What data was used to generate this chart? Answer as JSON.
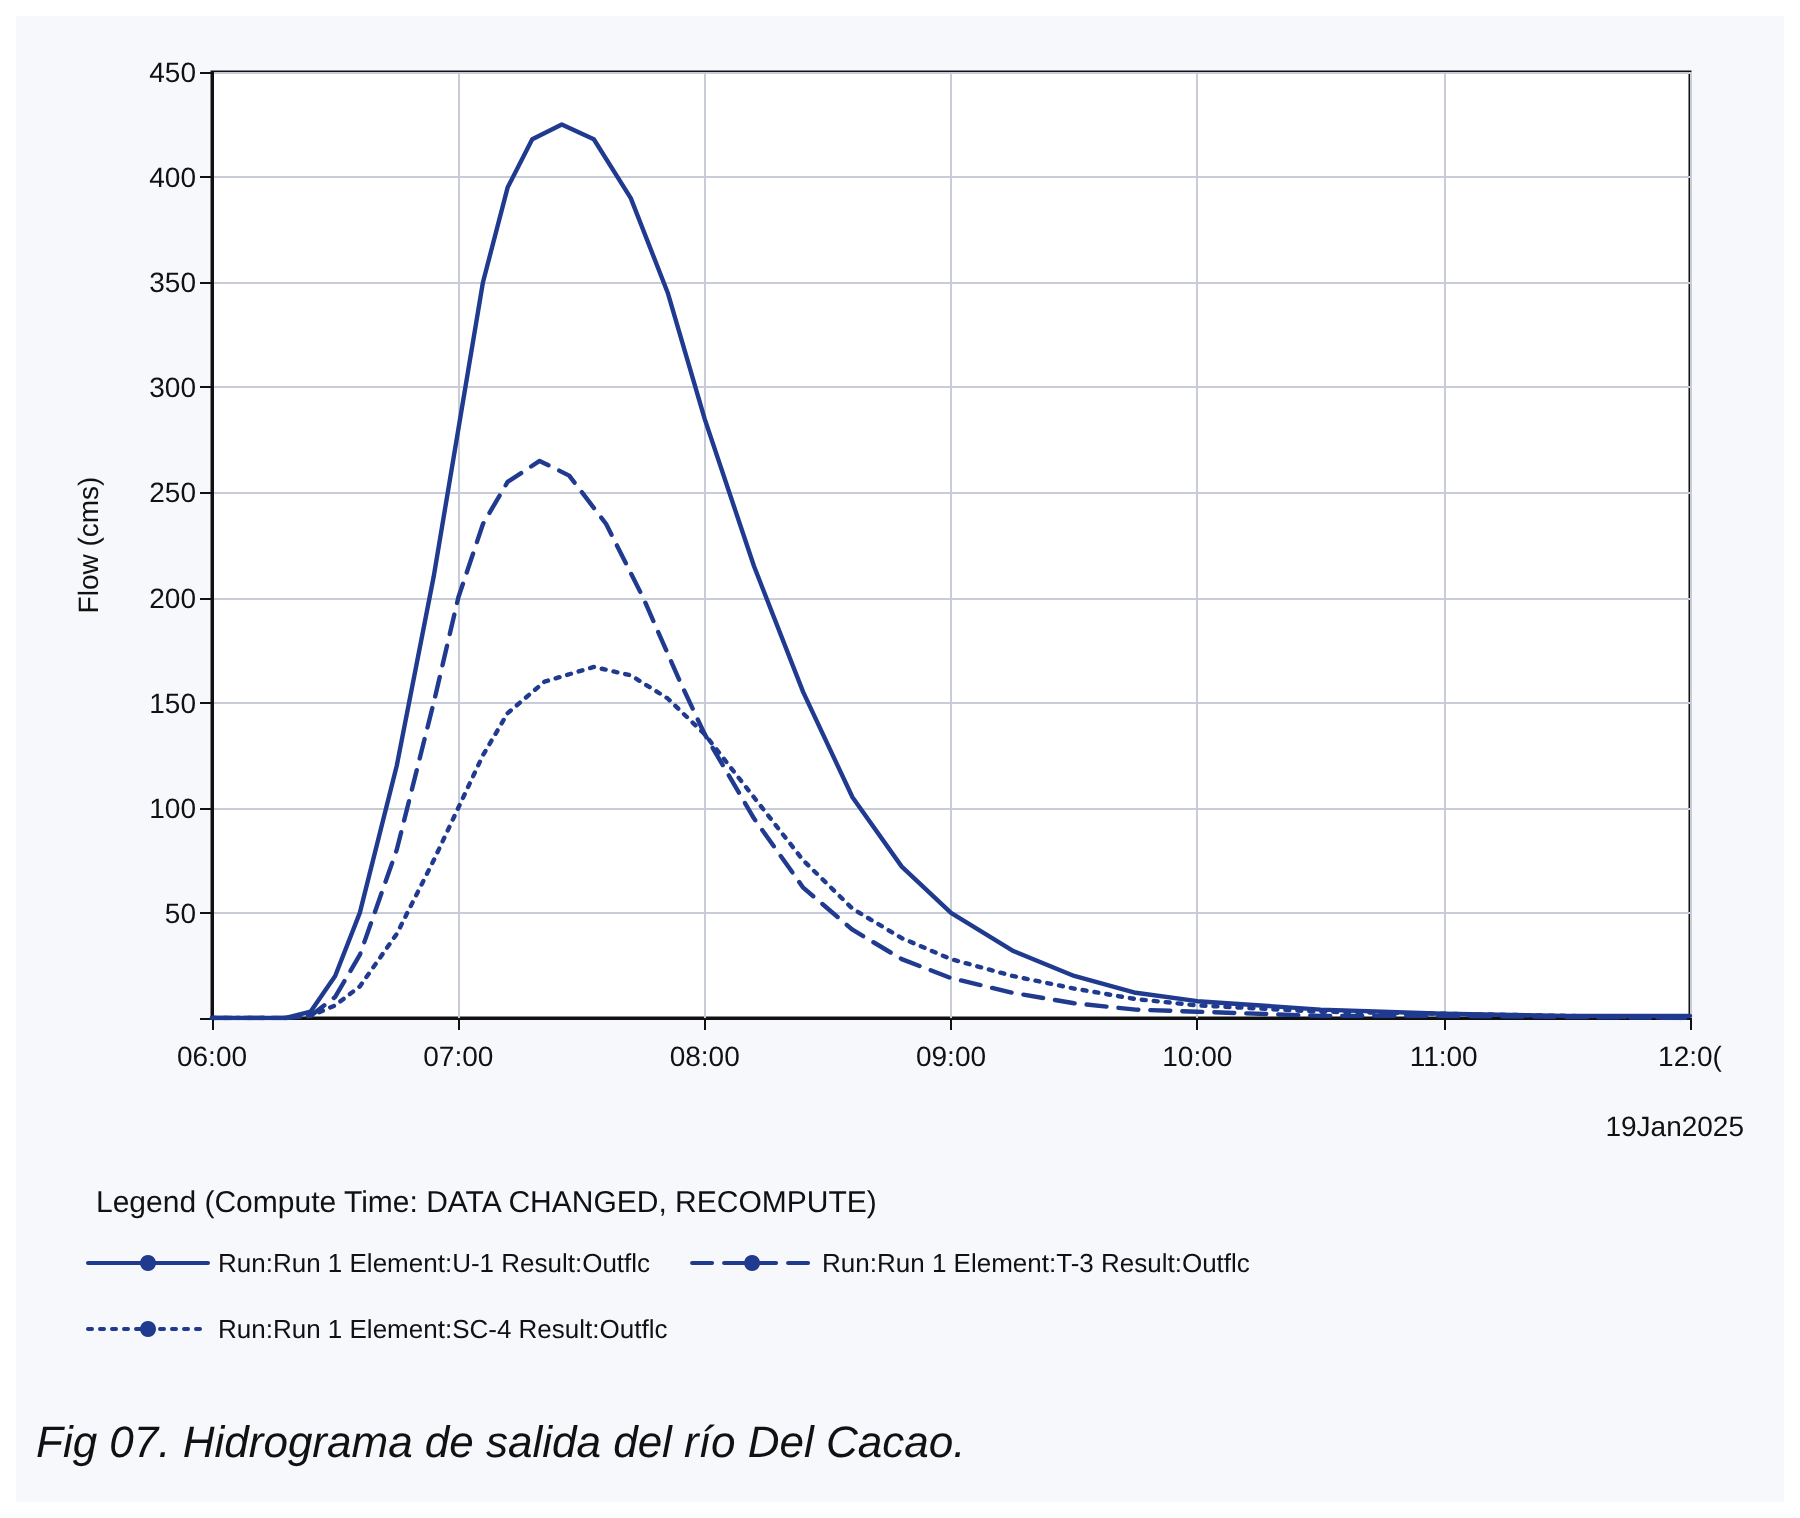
{
  "chart_data": {
    "type": "line",
    "ylabel": "Flow (cms)",
    "legend_title": "Legend (Compute Time: DATA CHANGED, RECOMPUTE)",
    "xlim": [
      6,
      12
    ],
    "xticks": [
      {
        "value": 6,
        "label": "06:00"
      },
      {
        "value": 7,
        "label": "07:00"
      },
      {
        "value": 8,
        "label": "08:00"
      },
      {
        "value": 9,
        "label": "09:00"
      },
      {
        "value": 10,
        "label": "10:00"
      },
      {
        "value": 11,
        "label": "11:00"
      },
      {
        "value": 12,
        "label": "12:0("
      }
    ],
    "ylim": [
      0,
      450
    ],
    "yticks": [
      {
        "value": 0,
        "label": null
      },
      50,
      100,
      150,
      200,
      250,
      300,
      350,
      400,
      450
    ],
    "grid": true,
    "legend": "bottom",
    "marker": "none",
    "annotations": [
      "19Jan2025",
      "Fig 07. Hidrograma de salida del río Del Cacao."
    ],
    "series": [
      {
        "name": "Run:Run 1 Element:U-1 Result:Outflc",
        "color": "#1f3a8f",
        "line_style": "solid",
        "x": [
          6,
          6.3,
          6.4,
          6.5,
          6.6,
          6.75,
          6.9,
          7.0,
          7.1,
          7.2,
          7.3,
          7.42,
          7.55,
          7.7,
          7.85,
          8.0,
          8.2,
          8.4,
          8.6,
          8.8,
          9.0,
          9.25,
          9.5,
          9.75,
          10.0,
          10.5,
          11,
          11.5,
          12
        ],
        "values": [
          0,
          0,
          3,
          20,
          50,
          120,
          210,
          280,
          350,
          395,
          418,
          425,
          418,
          390,
          345,
          285,
          215,
          155,
          105,
          72,
          50,
          32,
          20,
          12,
          8,
          4,
          2,
          1,
          1
        ]
      },
      {
        "name": "Run:Run 1 Element:T-3 Result:Outflc",
        "color": "#1f3a8f",
        "line_style": "dashed",
        "x": [
          6,
          6.3,
          6.4,
          6.5,
          6.6,
          6.75,
          6.9,
          7.0,
          7.1,
          7.2,
          7.33,
          7.45,
          7.6,
          7.75,
          7.9,
          8.0,
          8.2,
          8.4,
          8.6,
          8.8,
          9.0,
          9.25,
          9.5,
          9.75,
          10,
          10.5,
          11,
          12
        ],
        "values": [
          0,
          0,
          1,
          10,
          30,
          80,
          150,
          200,
          235,
          255,
          265,
          258,
          235,
          200,
          160,
          135,
          95,
          62,
          42,
          28,
          19,
          12,
          7,
          4,
          3,
          1,
          1,
          0
        ]
      },
      {
        "name": "Run:Run 1 Element:SC-4 Result:Outflc",
        "color": "#1f3a8f",
        "line_style": "dotted",
        "x": [
          6,
          6.3,
          6.4,
          6.5,
          6.6,
          6.75,
          6.9,
          7.0,
          7.1,
          7.2,
          7.35,
          7.55,
          7.7,
          7.85,
          8.0,
          8.2,
          8.4,
          8.6,
          8.8,
          9.0,
          9.25,
          9.5,
          9.75,
          10,
          10.5,
          11,
          11.5,
          12
        ],
        "values": [
          0,
          0,
          1,
          6,
          15,
          40,
          75,
          100,
          125,
          145,
          160,
          167,
          163,
          152,
          135,
          105,
          75,
          52,
          38,
          28,
          20,
          14,
          9,
          6,
          3,
          2,
          1,
          0
        ]
      }
    ]
  }
}
